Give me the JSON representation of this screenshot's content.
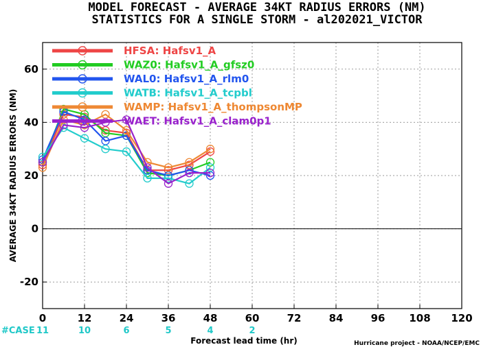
{
  "chart_data": {
    "type": "line",
    "title": "MODEL FORECAST - AVERAGE 34KT RADIUS ERRORS (NM)",
    "subtitle": "STATISTICS FOR A SINGLE STORM - al202021_VICTOR",
    "xlabel": "Forecast lead time (hr)",
    "ylabel": "AVERAGE 34KT RADIUS ERRORS (NM)",
    "xlim": [
      0,
      120
    ],
    "ylim": [
      -30,
      70
    ],
    "xticks": [
      0,
      12,
      24,
      36,
      48,
      60,
      72,
      84,
      96,
      108,
      120
    ],
    "yticks": [
      -20,
      0,
      20,
      40,
      60
    ],
    "grid": true,
    "legend_position": "top-left",
    "case_label": "#CASE",
    "case_counts": [
      {
        "x": 0,
        "n": "11"
      },
      {
        "x": 12,
        "n": "10"
      },
      {
        "x": 24,
        "n": "6"
      },
      {
        "x": 36,
        "n": "5"
      },
      {
        "x": 48,
        "n": "4"
      },
      {
        "x": 60,
        "n": "2"
      }
    ],
    "credit": "Hurricane project - NOAA/NCEP/EMC",
    "x": [
      0,
      6,
      12,
      18,
      24,
      30,
      36,
      42,
      48
    ],
    "series": [
      {
        "name": "HFSA:",
        "desc": "Hafsv1_A",
        "color": "#ee4545",
        "values": [
          24,
          43,
          42,
          37,
          36,
          22,
          22,
          24,
          29
        ]
      },
      {
        "name": "WAZ0:",
        "desc": "Hafsv1_A_gfsz0",
        "color": "#22cc22",
        "values": [
          25,
          45,
          43,
          36,
          35,
          21,
          20,
          22,
          25
        ]
      },
      {
        "name": "WAL0:",
        "desc": "Hafsv1_A_rlm0",
        "color": "#2255ee",
        "values": [
          26,
          44,
          41,
          33,
          35,
          22,
          20,
          22,
          20
        ]
      },
      {
        "name": "WATB:",
        "desc": "Hafsv1_A_tcpbl",
        "color": "#22cccc",
        "values": [
          27,
          38,
          34,
          30,
          29,
          19,
          19,
          17,
          23
        ]
      },
      {
        "name": "WAMP:",
        "desc": "Hafsv1_A_thompsonMP",
        "color": "#ee8833",
        "values": [
          23,
          41,
          39,
          43,
          37,
          25,
          23,
          25,
          30
        ]
      },
      {
        "name": "WAET:",
        "desc": "Hafsv1_A_clam0p1",
        "color": "#9922cc",
        "values": [
          25,
          39,
          38,
          40,
          41,
          23,
          17,
          21,
          21
        ]
      }
    ]
  }
}
